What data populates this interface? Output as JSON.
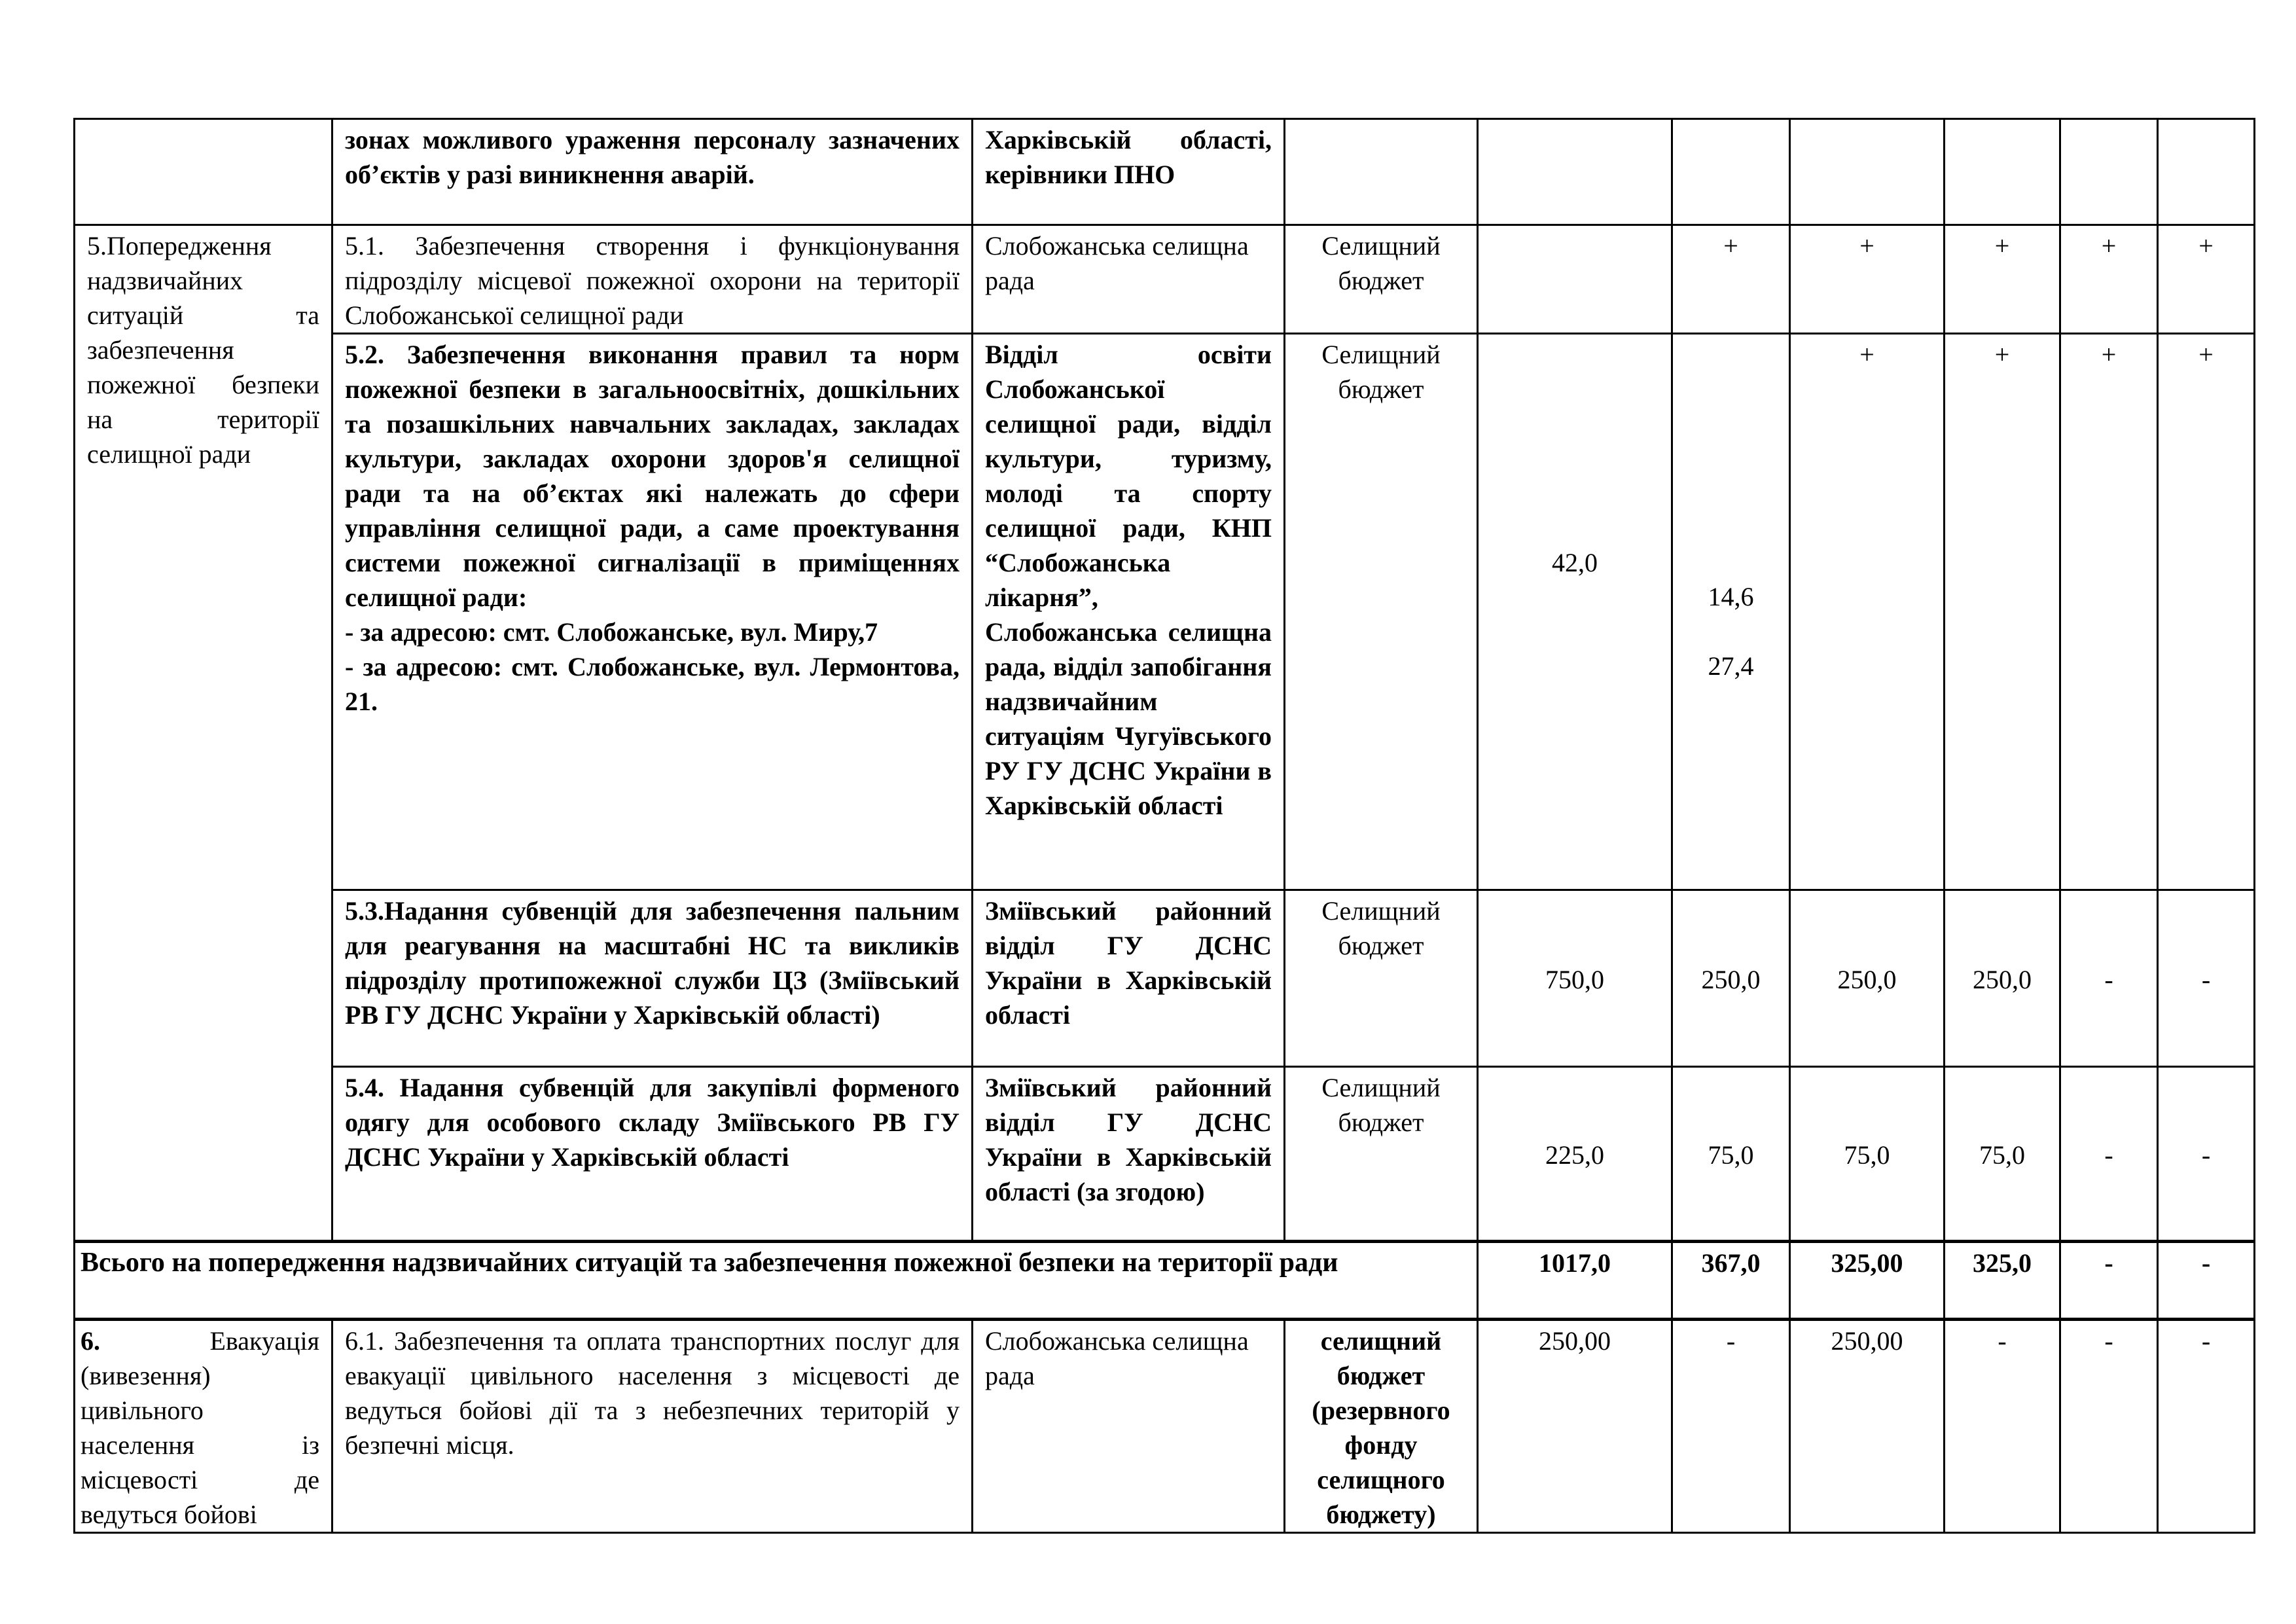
{
  "rows": {
    "r0": {
      "desc": "зонах можливого ураження персоналу зазначених об’єктів у разі виникнення аварій.",
      "resp": "Харківській області, керівники ПНО"
    },
    "section5": {
      "title": "5.Попередження надзвичайних ситуацій та забезпечення пожежної безпеки на території селищної ради"
    },
    "r51": {
      "desc": "5.1. Забезпечення створення і функціонування підрозділу місцевої пожежної охорони на території Слобожанської селищної ради",
      "resp": "Слобожанська селищна рада",
      "source": "Селищний бюджет",
      "total": "",
      "y1": "+",
      "y2": "+",
      "y3": "+",
      "y4": "+",
      "y5": "+"
    },
    "r52": {
      "desc": "5.2. Забезпечення виконання правил та норм пожежної безпеки в загальноосвітніх, дошкільних та позашкільних навчальних закладах, закладах культури, закладах охорони здоров'я селищної ради та на об’єктах які належать до сфери управління селищної ради, а саме проектування системи пожежної сигналізації в приміщеннях селищної ради:",
      "addr1": "-  за адресою: смт. Слобожанське, вул. Миру,7",
      "addr2": "-  за адресою: смт. Слобожанське, вул. Лермонтова, 21.",
      "resp": "Відділ освіти Слобожанської селищної ради, відділ культури, туризму, молоді та спорту селищної ради, КНП “Слобожанська лікарня”, Слобожанська селищна рада, відділ запобігання надзвичайним ситуаціям Чугуївського РУ ГУ ДСНС України в Харківській області",
      "source": "Селищний бюджет",
      "total": "42,0",
      "y1a": "14,6",
      "y1b": "27,4",
      "y2": "+",
      "y3": "+",
      "y4": "+",
      "y5": "+"
    },
    "r53": {
      "desc": "5.3.Надання субвенцій для забезпечення пальним для реагування на масштабні НС та викликів підрозділу протипожежної служби ЦЗ (Зміївський РВ ГУ ДСНС України у Харківській області)",
      "resp": "Зміївський районний відділ ГУ ДСНС України в Харківській області",
      "source": "Селищний бюджет",
      "total": "750,0",
      "y1": "250,0",
      "y2": "250,0",
      "y3": "250,0",
      "y4": "-",
      "y5": "-"
    },
    "r54": {
      "desc": "5.4. Надання субвенцій для закупівлі форменого одягу для особового складу Зміївського РВ ГУ ДСНС України у Харківській області",
      "resp": "Зміївський районний відділ ГУ ДСНС України в Харківській області (за згодою)",
      "source": "Селищний бюджет",
      "total": "225,0",
      "y1": "75,0",
      "y2": "75,0",
      "y3": "75,0",
      "y4": "-",
      "y5": "-"
    },
    "total5": {
      "label": "Всього на попередження надзвичайних ситуацій та забезпечення пожежної безпеки на території ради",
      "total": "1017,0",
      "y1": "367,0",
      "y2": "325,00",
      "y3": "325,0",
      "y4": "-",
      "y5": "-"
    },
    "section6": {
      "num": "6.",
      "title": "Евакуація (вивезення) цивільного населення із місцевості де ведуться бойові"
    },
    "r61": {
      "desc": "6.1. Забезпечення та оплата транспортних послуг для евакуації цивільного населення з місцевості де ведуться бойові дії та з небезпечних територій у безпечні місця.",
      "resp": "Слобожанська селищна рада",
      "source": "селищний бюджет (резервного фонду селищного бюджету)",
      "total": "250,00",
      "y1": "-",
      "y2": "250,00",
      "y3": "-",
      "y4": "-",
      "y5": "-"
    }
  }
}
